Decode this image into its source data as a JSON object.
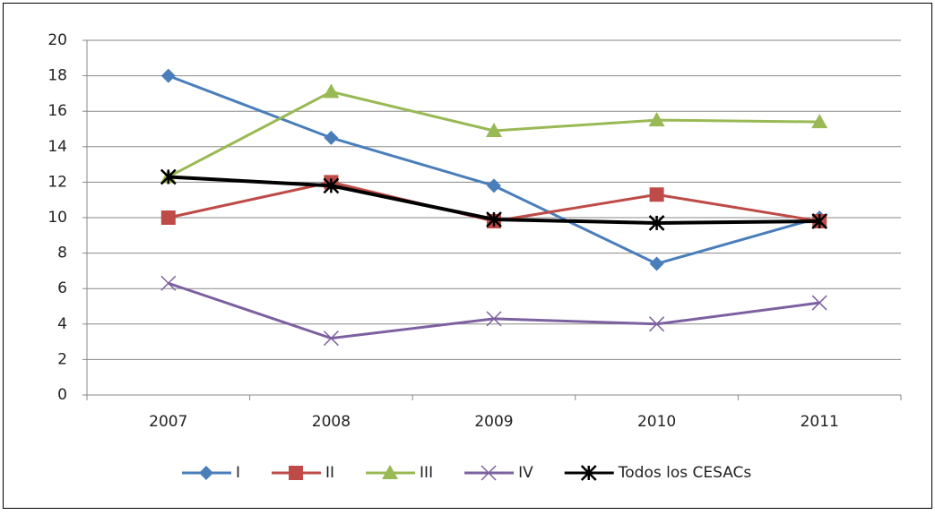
{
  "chart_data": {
    "type": "line",
    "categories": [
      "2007",
      "2008",
      "2009",
      "2010",
      "2011"
    ],
    "series": [
      {
        "name": "I",
        "color": "#4a7ebb",
        "marker": "diamond",
        "values": [
          18,
          14.5,
          11.8,
          7.4,
          10
        ]
      },
      {
        "name": "II",
        "color": "#be4b48",
        "marker": "square",
        "values": [
          10,
          12,
          9.8,
          11.3,
          9.8
        ]
      },
      {
        "name": "III",
        "color": "#98b954",
        "marker": "triangle",
        "values": [
          12.3,
          17.1,
          14.9,
          15.5,
          15.4
        ]
      },
      {
        "name": "IV",
        "color": "#7d60a0",
        "marker": "x",
        "values": [
          6.3,
          3.2,
          4.3,
          4.0,
          5.2
        ]
      },
      {
        "name": "Todos los CESACs",
        "color": "#000000",
        "marker": "star",
        "values": [
          12.3,
          11.8,
          9.9,
          9.7,
          9.8
        ]
      }
    ],
    "ylim": [
      0,
      20
    ],
    "yticks": [
      0,
      2,
      4,
      6,
      8,
      10,
      12,
      14,
      16,
      18,
      20
    ],
    "grid": true,
    "legend": "bottom"
  }
}
